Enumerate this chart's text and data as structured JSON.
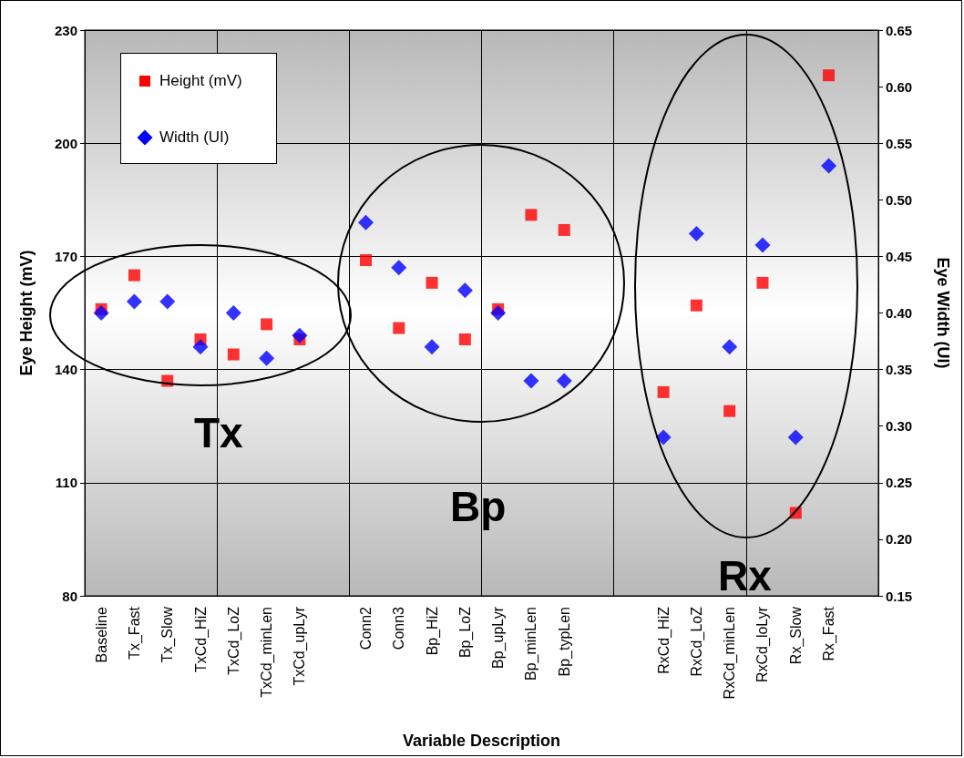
{
  "chart_data": {
    "type": "scatter",
    "xlabel": "Variable Description",
    "ylabel": "Eye Height (mV)",
    "y2label": "Eye Width (UI)",
    "categories": [
      "Baseline",
      "Tx_Fast",
      "Tx_Slow",
      "TxCd_HiZ",
      "TxCd_LoZ",
      "TxCd_minLen",
      "TxCd_upLyr",
      null,
      "Conn2",
      "Conn3",
      "Bp_HiZ",
      "Bp_LoZ",
      "Bp_upLyr",
      "Bp_minLen",
      "Bp_typLen",
      null,
      null,
      "RxCd_HiZ",
      "RxCd_LoZ",
      "RxCd_minLen",
      "RxCd_loLyr",
      "Rx_Slow",
      "Rx_Fast",
      null
    ],
    "series": [
      {
        "name": "Height (mV)",
        "color": "#ff0000",
        "marker": "square",
        "values": [
          156,
          165,
          137,
          148,
          144,
          152,
          148,
          null,
          169,
          151,
          163,
          148,
          156,
          181,
          177,
          null,
          null,
          134,
          157,
          129,
          163,
          102,
          218,
          null
        ]
      },
      {
        "name": "Width (UI)",
        "color": "#0000ff",
        "marker": "diamond",
        "axis": "y2",
        "values": [
          0.4,
          0.41,
          0.41,
          0.37,
          0.4,
          0.36,
          0.38,
          null,
          0.48,
          0.44,
          0.37,
          0.42,
          0.4,
          0.34,
          0.34,
          null,
          null,
          0.29,
          0.47,
          0.37,
          0.46,
          0.29,
          0.53,
          null
        ]
      }
    ],
    "ylim": [
      80,
      230
    ],
    "yticks": [
      80,
      110,
      140,
      170,
      200,
      230
    ],
    "y2lim": [
      0.15,
      0.65
    ],
    "y2ticks": [
      0.15,
      {
        "value": 0.2,
        "label": "0.20"
      },
      0.25,
      {
        "value": 0.3,
        "label": "0.30"
      },
      0.35,
      {
        "value": 0.4,
        "label": "0.40"
      },
      0.45,
      {
        "value": 0.5,
        "label": "0.50"
      },
      0.55,
      {
        "value": 0.6,
        "label": "0.60"
      },
      0.65
    ],
    "annotations": [
      "Tx",
      "Bp",
      "Rx"
    ],
    "grid": true,
    "legend": "top left"
  }
}
